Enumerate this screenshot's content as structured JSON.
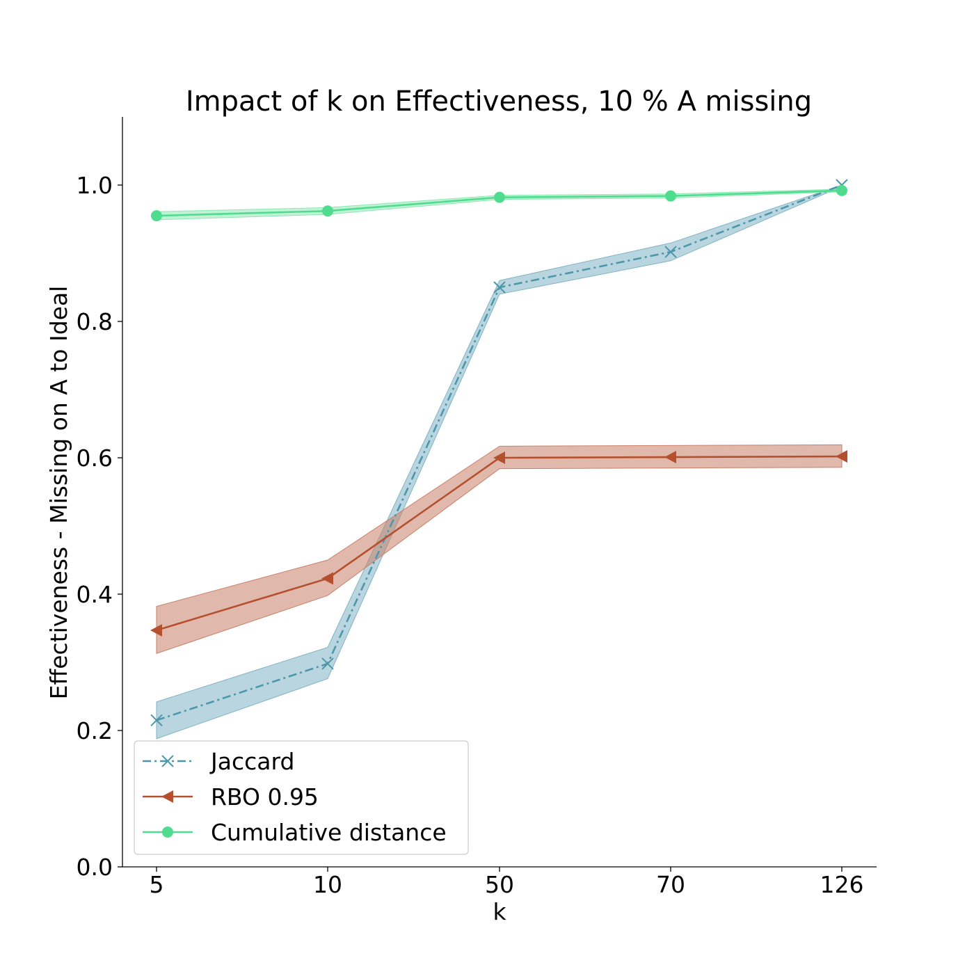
{
  "chart_data": {
    "type": "line",
    "title": "Impact of k on Effectiveness, 10 % A missing",
    "xlabel": "k",
    "ylabel": "Effectiveness - Missing on A to Ideal",
    "categories": [
      "5",
      "10",
      "50",
      "70",
      "126"
    ],
    "ylim": [
      0.0,
      1.1
    ],
    "yticks": [
      "0.0",
      "0.2",
      "0.4",
      "0.6",
      "0.8",
      "1.0"
    ],
    "grid": false,
    "legend_position": "lower-left",
    "series": [
      {
        "name": "Jaccard",
        "color": "#4d97ab",
        "band_color": "#7fb3c4",
        "marker": "x",
        "linestyle": "dashdot",
        "values": [
          0.215,
          0.298,
          0.85,
          0.902,
          1.0
        ],
        "lower": [
          0.188,
          0.276,
          0.84,
          0.889,
          0.998
        ],
        "upper": [
          0.242,
          0.322,
          0.86,
          0.915,
          1.0
        ]
      },
      {
        "name": "RBO 0.95",
        "color": "#b5502f",
        "band_color": "#c97f68",
        "marker": "triangle-left",
        "linestyle": "solid",
        "values": [
          0.347,
          0.423,
          0.6,
          0.601,
          0.602
        ],
        "lower": [
          0.313,
          0.398,
          0.584,
          0.585,
          0.586
        ],
        "upper": [
          0.382,
          0.45,
          0.617,
          0.618,
          0.619
        ]
      },
      {
        "name": "Cumulative distance",
        "color": "#4fdc8e",
        "band_color": "#8ee8b4",
        "marker": "circle",
        "linestyle": "solid",
        "values": [
          0.955,
          0.962,
          0.982,
          0.984,
          0.992
        ],
        "lower": [
          0.949,
          0.957,
          0.979,
          0.981,
          0.99
        ],
        "upper": [
          0.961,
          0.967,
          0.985,
          0.987,
          0.994
        ]
      }
    ]
  }
}
